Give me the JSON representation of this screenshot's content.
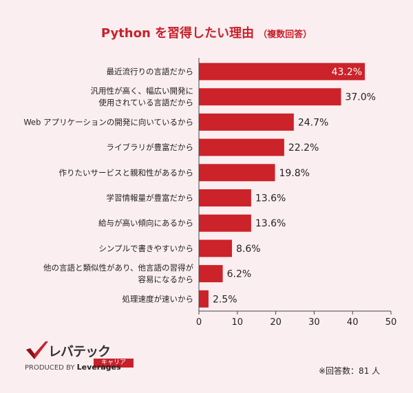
{
  "title": {
    "main": "Python を習得したい理由",
    "sub": "（複数回答）"
  },
  "colors": {
    "bar": "#cc2229",
    "background": "#fbeef0",
    "title": "#c8202b"
  },
  "chart_data": {
    "type": "bar",
    "orientation": "horizontal",
    "categories": [
      [
        "最近流行りの言語だから"
      ],
      [
        "汎用性が高く、幅広い開発に",
        "使用されている言語だから"
      ],
      [
        "Web アプリケーションの開発に向いているから"
      ],
      [
        "ライブラリが豊富だから"
      ],
      [
        "作りたいサービスと親和性があるから"
      ],
      [
        "学習情報量が豊富だから"
      ],
      [
        "給与が高い傾向にあるから"
      ],
      [
        "シンプルで書きやすいから"
      ],
      [
        "他の言語と類似性があり、他言語の習得が",
        "容易になるから"
      ],
      [
        "処理速度が速いから"
      ]
    ],
    "values": [
      43.2,
      37.0,
      24.7,
      22.2,
      19.8,
      13.6,
      13.6,
      8.6,
      6.2,
      2.5
    ],
    "labels": [
      "43.2%",
      "37.0%",
      "24.7%",
      "22.2%",
      "19.8%",
      "13.6%",
      "13.6%",
      "8.6%",
      "6.2%",
      "2.5%"
    ],
    "xlim": [
      0,
      50
    ],
    "xticks": [
      0,
      10,
      20,
      30,
      40,
      50
    ],
    "grid": false
  },
  "logo": {
    "brand": "レバテック",
    "sub": "キャリア",
    "produced_by": "PRODUCED BY",
    "company": "Leverages"
  },
  "footnote": "※回答数：81 人"
}
